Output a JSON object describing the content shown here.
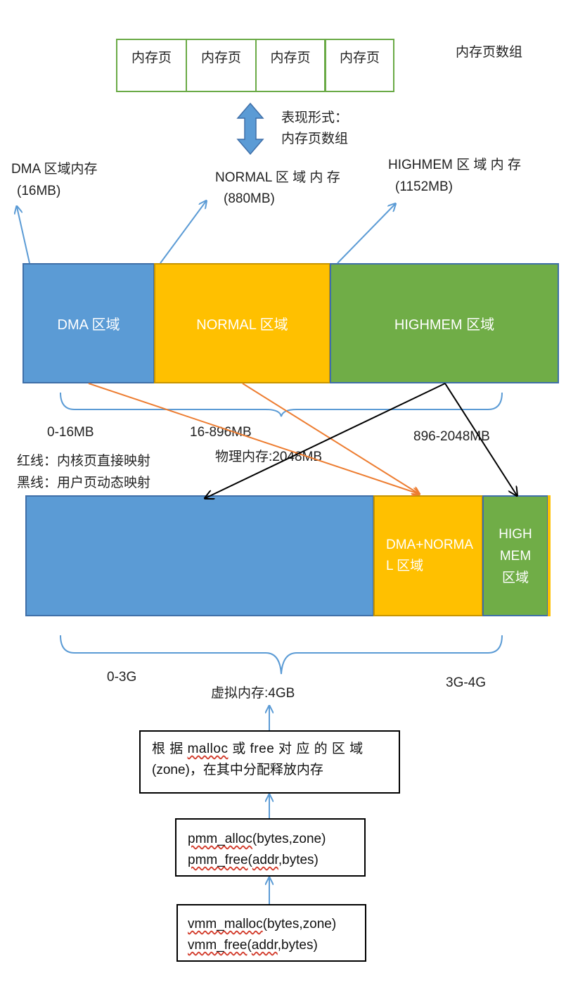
{
  "page_array": {
    "pages": [
      "内存页",
      "内存页",
      "内存页",
      "内存页"
    ],
    "label": "内存页数组"
  },
  "representation": {
    "line1": "表现形式：",
    "line2": "内存页数组"
  },
  "zone_labels": {
    "dma_name": "DMA 区域内存",
    "dma_size": "(16MB)",
    "normal_name": "NORMAL 区 域 内 存",
    "normal_size": "(880MB)",
    "highmem_name": "HIGHMEM 区 域 内 存",
    "highmem_size": "(1152MB)"
  },
  "physical": {
    "dma": "DMA 区域",
    "normal": "NORMAL 区域",
    "highmem": "HIGHMEM 区域",
    "range_dma": "0-16MB",
    "range_normal": "16-896MB",
    "range_highmem": "896-2048MB",
    "total": "物理内存:2048MB"
  },
  "legend": {
    "red": "红线：内核页直接映射",
    "black": "黑线：用户页动态映射"
  },
  "virtual": {
    "dma_normal_line1": "DMA+NORMA",
    "dma_normal_line2": "L 区域",
    "high_line1": "HIGH",
    "high_line2": "MEM",
    "high_line3": "区域",
    "range_low": "0-3G",
    "range_high": "3G-4G",
    "total": "虚拟内存:4GB"
  },
  "flow": {
    "zone_box_line1_a": "根 据 ",
    "zone_box_line1_b": "malloc",
    "zone_box_line1_c": " 或 free 对 应 的 区 域",
    "zone_box_line2": "(zone)，在其中分配释放内存",
    "pmm_alloc_fn": "pmm_alloc",
    "pmm_alloc_args": "(bytes,zone)",
    "pmm_free_fn": "pmm_free",
    "pmm_free_paren": "(",
    "pmm_free_addr": "addr",
    "pmm_free_rest": ",bytes)",
    "vmm_malloc_fn": "vmm_malloc",
    "vmm_malloc_args": "(bytes,zone)",
    "vmm_free_fn": "vmm_free",
    "vmm_free_paren": "(",
    "vmm_free_addr": "addr",
    "vmm_free_rest": ",bytes)"
  },
  "colors": {
    "dma": "#5b9bd5",
    "normal": "#ffc000",
    "highmem": "#70ad47",
    "page_border": "#6aaa46",
    "arrow_blue": "#5b9bd5",
    "arrow_orange": "#ed7d31",
    "arrow_black": "#000000"
  }
}
